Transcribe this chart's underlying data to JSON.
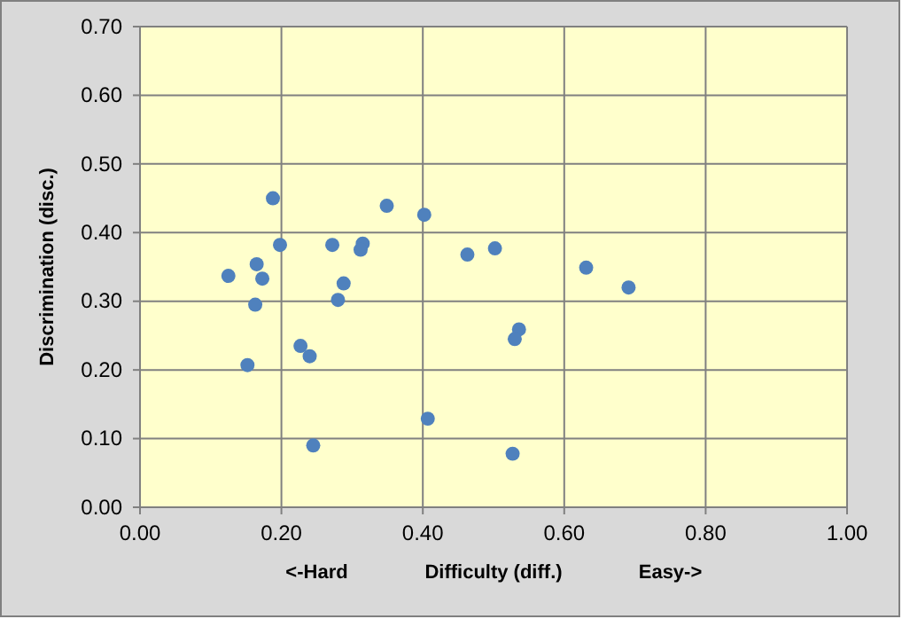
{
  "chart_data": {
    "type": "scatter",
    "xlabel": "Difficulty (diff.)",
    "ylabel": "Discrimination  (disc.)",
    "annotations": [
      "<-Hard",
      "Easy->"
    ],
    "x": [
      0.188,
      0.198,
      0.272,
      0.315,
      0.312,
      0.165,
      0.125,
      0.173,
      0.288,
      0.28,
      0.163,
      0.227,
      0.24,
      0.152,
      0.245,
      0.349,
      0.402,
      0.463,
      0.502,
      0.631,
      0.536,
      0.53,
      0.407,
      0.527,
      0.691
    ],
    "series": [
      {
        "color": "#4f81bd",
        "values": [
          0.45,
          0.382,
          0.382,
          0.384,
          0.375,
          0.354,
          0.337,
          0.333,
          0.326,
          0.302,
          0.295,
          0.235,
          0.22,
          0.207,
          0.09,
          0.439,
          0.426,
          0.368,
          0.377,
          0.349,
          0.259,
          0.245,
          0.129,
          0.078,
          0.32
        ]
      }
    ],
    "xlim": [
      0,
      1
    ],
    "xticks": [
      {
        "value": 0,
        "label": "0.00"
      },
      {
        "value": 0.2,
        "label": "0.20"
      },
      {
        "value": 0.4,
        "label": "0.40"
      },
      {
        "value": 0.6,
        "label": "0.60"
      },
      {
        "value": 0.8,
        "label": "0.80"
      },
      {
        "value": 1,
        "label": "1.00"
      }
    ],
    "ylim": [
      0,
      0.7
    ],
    "yticks": [
      {
        "value": 0,
        "label": "0.00"
      },
      {
        "value": 0.1,
        "label": "0.10"
      },
      {
        "value": 0.2,
        "label": "0.20"
      },
      {
        "value": 0.3,
        "label": "0.30"
      },
      {
        "value": 0.4,
        "label": "0.40"
      },
      {
        "value": 0.5,
        "label": "0.50"
      },
      {
        "value": 0.6,
        "label": "0.60"
      },
      {
        "value": 0.7,
        "label": "0.70"
      }
    ],
    "grid": true,
    "marker": "circle"
  }
}
